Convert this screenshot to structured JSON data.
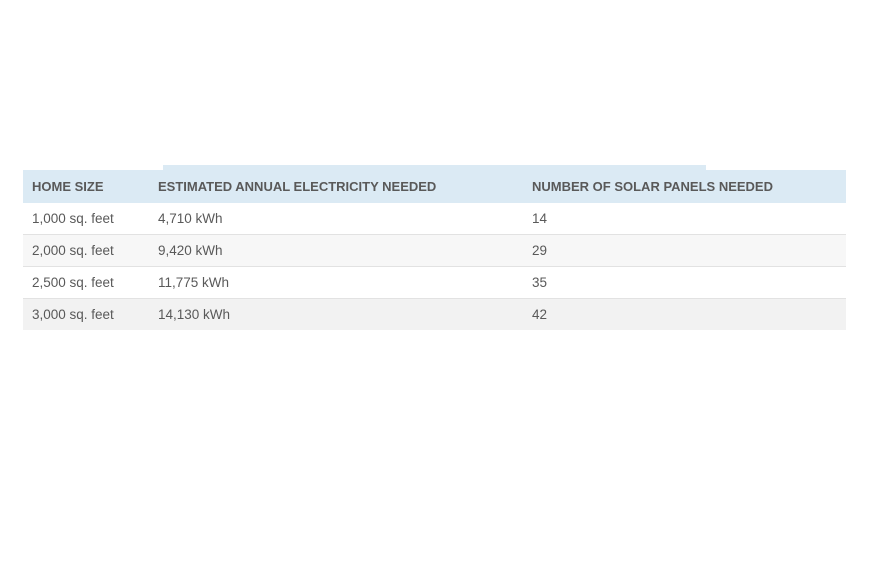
{
  "table": {
    "headers": [
      "HOME SIZE",
      "ESTIMATED ANNUAL ELECTRICITY NEEDED",
      "NUMBER OF SOLAR PANELS NEEDED"
    ],
    "rows": [
      [
        "1,000 sq. feet",
        "4,710 kWh",
        "14"
      ],
      [
        "2,000 sq. feet",
        "9,420 kWh",
        "29"
      ],
      [
        "2,500 sq. feet",
        "11,775 kWh",
        "35"
      ],
      [
        "3,000 sq. feet",
        "14,130 kWh",
        "42"
      ]
    ]
  },
  "colors": {
    "header_background": "#dbeaf4",
    "text": "#595959",
    "alt_row": "#f2f2f2"
  }
}
